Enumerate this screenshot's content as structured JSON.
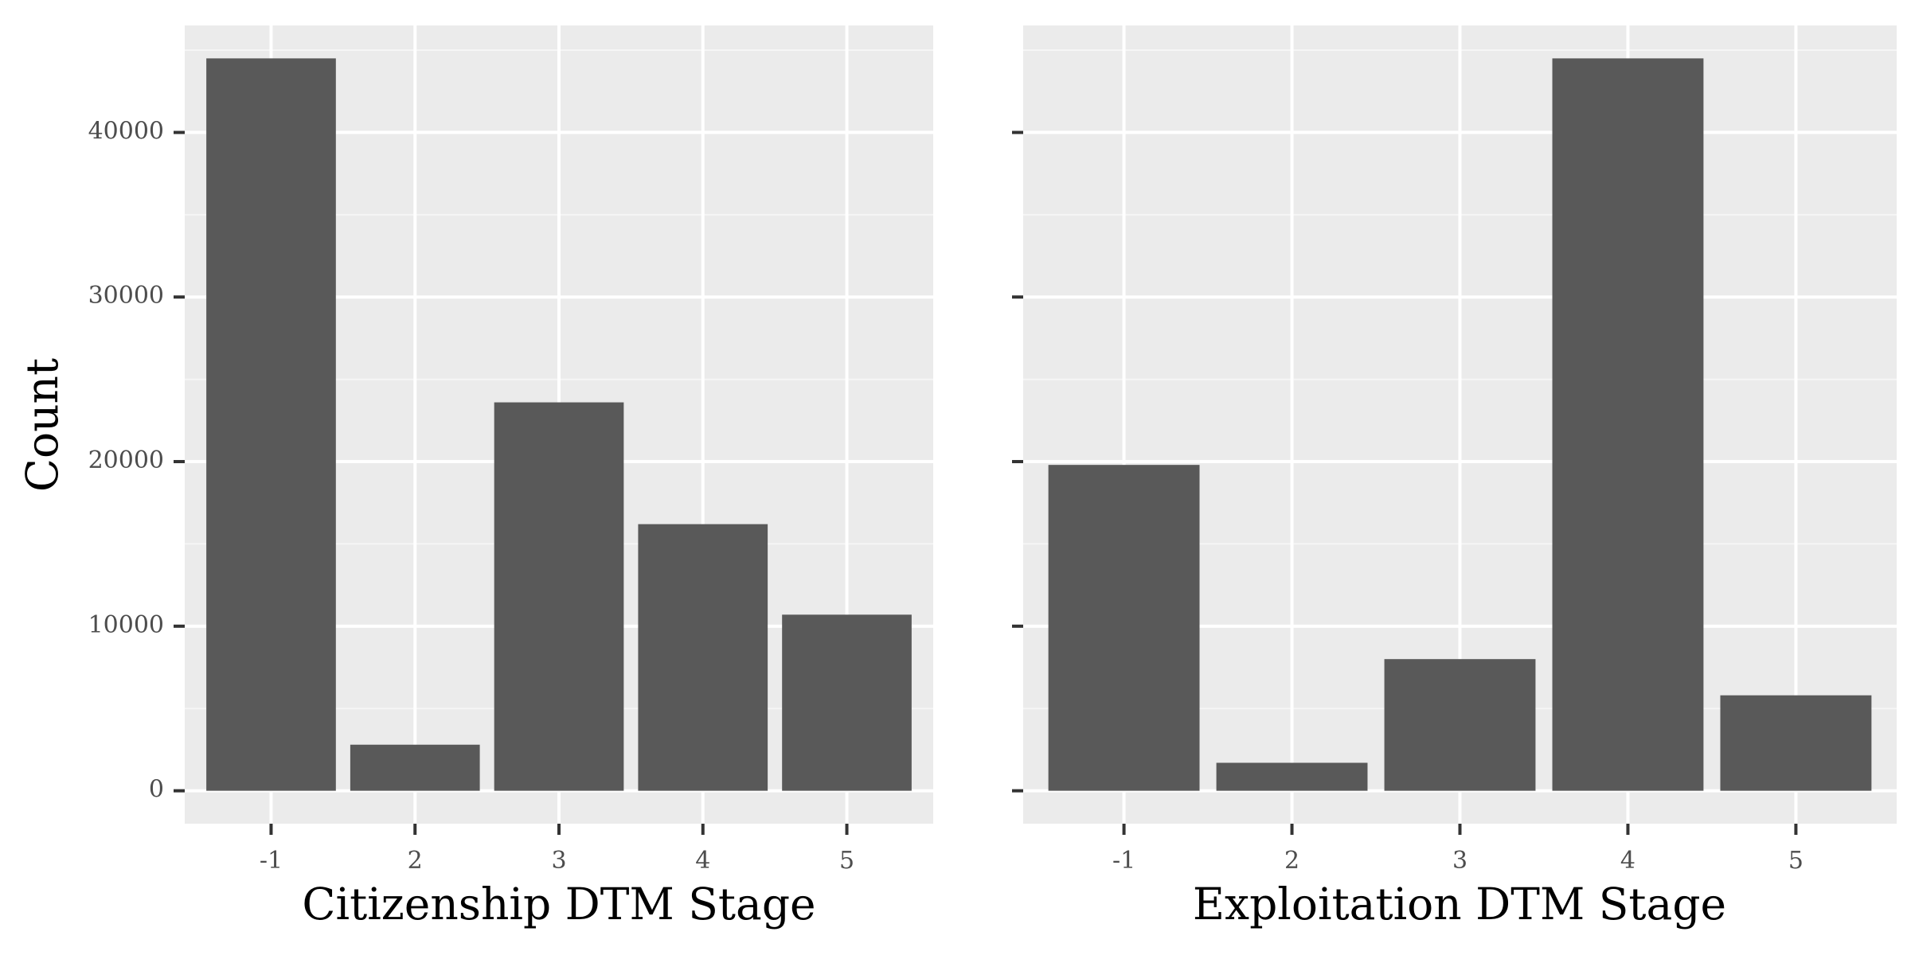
{
  "ylabel": "Count",
  "colors": {
    "panel_bg": "#ebebeb",
    "grid_major": "#ffffff",
    "grid_minor": "#f5f5f5",
    "bar": "#595959",
    "tick": "#333333",
    "tick_label": "#4d4d4d",
    "axis_title": "#000000"
  },
  "chart_data": [
    {
      "type": "bar",
      "xlabel": "Citizenship DTM Stage",
      "ylabel": "Count",
      "categories": [
        "-1",
        "2",
        "3",
        "4",
        "5"
      ],
      "values": [
        44500,
        2800,
        23600,
        16200,
        10700
      ],
      "ylim": [
        -2000,
        46500
      ],
      "yticks": [
        0,
        10000,
        20000,
        30000,
        40000
      ],
      "ytick_labels": [
        "0",
        "10000",
        "20000",
        "30000",
        "40000"
      ],
      "show_y_tick_labels": true,
      "grid": true
    },
    {
      "type": "bar",
      "xlabel": "Exploitation DTM Stage",
      "categories": [
        "-1",
        "2",
        "3",
        "4",
        "5"
      ],
      "values": [
        19800,
        1700,
        8000,
        44500,
        5800
      ],
      "ylim": [
        -2000,
        46500
      ],
      "yticks": [
        0,
        10000,
        20000,
        30000,
        40000
      ],
      "ytick_labels": [
        "0",
        "10000",
        "20000",
        "30000",
        "40000"
      ],
      "show_y_tick_labels": false,
      "grid": true
    }
  ]
}
